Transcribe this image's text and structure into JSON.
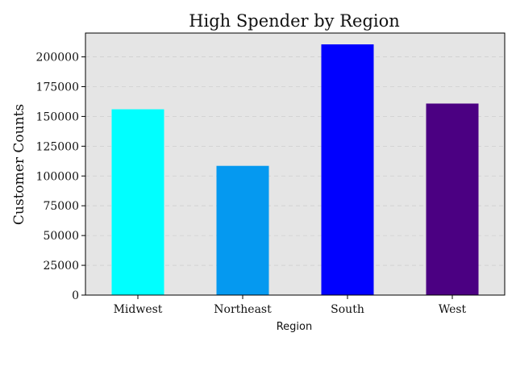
{
  "chart_data": {
    "type": "bar",
    "title": "High Spender by Region",
    "xlabel": "Region",
    "ylabel": "Customer Counts",
    "categories": [
      "Midwest",
      "Northeast",
      "South",
      "West"
    ],
    "values": [
      156000,
      108500,
      210500,
      160800
    ],
    "colors": [
      "#00ffff",
      "#0599f0",
      "#0000ff",
      "#4b0082"
    ],
    "ylim": [
      0,
      220000
    ],
    "yticks": [
      0,
      25000,
      50000,
      75000,
      100000,
      125000,
      150000,
      175000,
      200000
    ],
    "grid": true,
    "plot_background": "#e5e5e5"
  }
}
